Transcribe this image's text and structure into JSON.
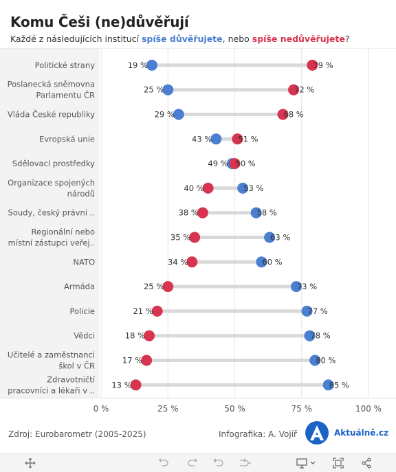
{
  "header": {
    "title": "Komu Češi (ne)důvěřují",
    "subtitle_prefix": "Každé z následujících institucí ",
    "subtitle_trust": "spíše důvěřujete",
    "subtitle_mid": ", nebo ",
    "subtitle_distrust": "spíše nedůvěřujete",
    "subtitle_suffix": "?"
  },
  "chart_data": {
    "type": "dumbbell",
    "xlim": [
      0,
      100
    ],
    "xticks": [
      "0 %",
      "25 %",
      "50 %",
      "75 %",
      "100 %"
    ],
    "xtick_values": [
      0,
      25,
      50,
      75,
      100
    ],
    "grid": true,
    "categories": [
      [
        "Politické strany"
      ],
      [
        "Poslanecká sněmovna",
        "Parlamentu ČR"
      ],
      [
        "Vláda České republiky"
      ],
      [
        "Evropská unie"
      ],
      [
        "Sdělovací prostředky"
      ],
      [
        "Organizace spojených",
        "národů"
      ],
      [
        "Soudy, český právní .."
      ],
      [
        "Regionální nebo",
        "místní zástupci veřej.."
      ],
      [
        "NATO"
      ],
      [
        "Armáda"
      ],
      [
        "Policie"
      ],
      [
        "Vědci"
      ],
      [
        "Učitelé a zaměstnanci",
        "škol v ČR"
      ],
      [
        "Zdravotničtí",
        "pracovníci a lékaři v .."
      ]
    ],
    "series": [
      {
        "name": "spíše důvěřujete",
        "color": "#4a7fd1",
        "values": [
          19,
          25,
          29,
          43,
          49,
          53,
          58,
          63,
          60,
          73,
          77,
          78,
          80,
          85
        ]
      },
      {
        "name": "spíše nedůvěřujete",
        "color": "#d6344f",
        "values": [
          79,
          72,
          68,
          51,
          50,
          40,
          38,
          35,
          34,
          25,
          21,
          18,
          17,
          13
        ]
      }
    ],
    "value_suffix": " %"
  },
  "footer": {
    "source": "Zdroj: Eurobarometr (2005-2025)",
    "credit": "Infografika: A. Vojíř",
    "logo_letter": "A",
    "logo_text": "Aktuálně.cz"
  },
  "toolbar": {
    "icons": [
      "move-icon",
      "undo-icon",
      "redo-icon",
      "revert-icon",
      "refresh-icon",
      "share-view-icon",
      "fullscreen-icon",
      "share-icon"
    ]
  }
}
